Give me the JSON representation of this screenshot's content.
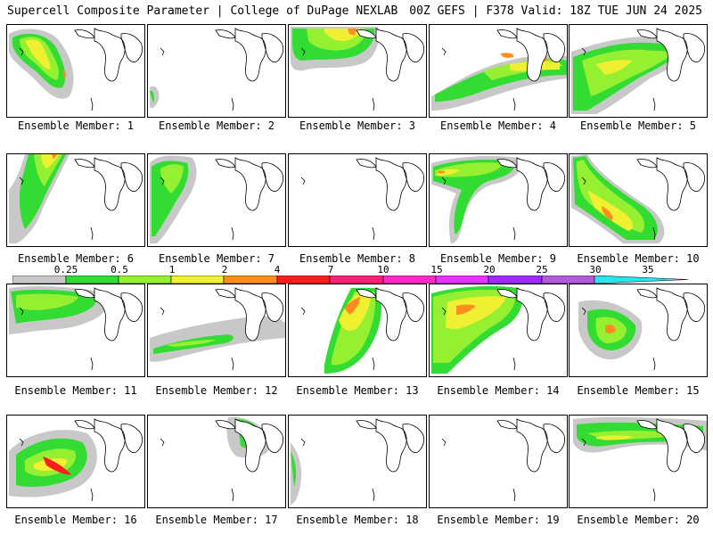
{
  "header": {
    "title": "Supercell Composite Parameter | College of DuPage NEXLAB",
    "run_info": "00Z GEFS | F378 Valid: 18Z TUE JUN 24 2025"
  },
  "colorbar": {
    "ticks": [
      "0.25",
      "0.5",
      "1",
      "2",
      "4",
      "7",
      "10",
      "15",
      "20",
      "25",
      "30",
      "35"
    ],
    "colors": [
      "#c8c8c8",
      "#32dc32",
      "#96f032",
      "#f0f032",
      "#ff8c1e",
      "#ff1e1e",
      "#ff1e78",
      "#ff28c8",
      "#e632ff",
      "#a028ff",
      "#b45adc",
      "#28e6f0"
    ]
  },
  "panels": [
    {
      "label": "Ensemble Member: 1"
    },
    {
      "label": "Ensemble Member: 2"
    },
    {
      "label": "Ensemble Member: 3"
    },
    {
      "label": "Ensemble Member: 4"
    },
    {
      "label": "Ensemble Member: 5"
    },
    {
      "label": "Ensemble Member: 6"
    },
    {
      "label": "Ensemble Member: 7"
    },
    {
      "label": "Ensemble Member: 8"
    },
    {
      "label": "Ensemble Member: 9"
    },
    {
      "label": "Ensemble Member: 10"
    },
    {
      "label": "Ensemble Member: 11"
    },
    {
      "label": "Ensemble Member: 12"
    },
    {
      "label": "Ensemble Member: 13"
    },
    {
      "label": "Ensemble Member: 14"
    },
    {
      "label": "Ensemble Member: 15"
    },
    {
      "label": "Ensemble Member: 16"
    },
    {
      "label": "Ensemble Member: 17"
    },
    {
      "label": "Ensemble Member: 18"
    },
    {
      "label": "Ensemble Member: 19"
    },
    {
      "label": "Ensemble Member: 20"
    }
  ]
}
